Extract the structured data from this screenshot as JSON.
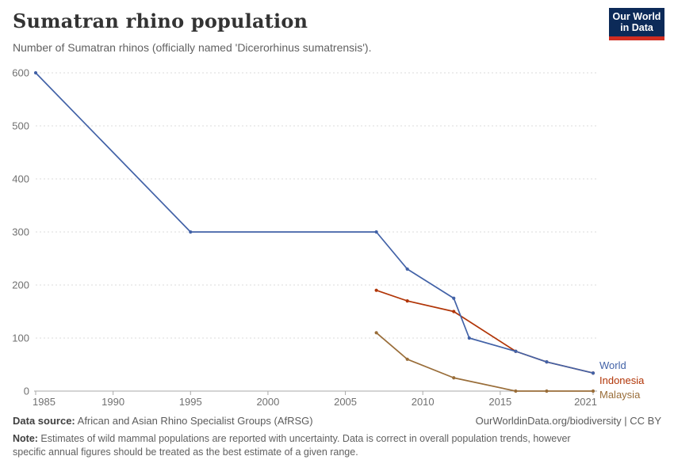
{
  "header": {
    "title": "Sumatran rhino population",
    "subtitle": "Number of Sumatran rhinos (officially named 'Dicerorhinus sumatrensis').",
    "logo": {
      "line1": "Our World",
      "line2": "in Data",
      "bg_color": "#0C2A58",
      "accent_color": "#D12D21"
    }
  },
  "chart_data": {
    "type": "line",
    "title": "Sumatran rhino population",
    "subtitle": "Number of Sumatran rhinos (officially named 'Dicerorhinus sumatrensis').",
    "xlabel": "",
    "ylabel": "",
    "xlim": [
      1985,
      2021
    ],
    "ylim": [
      0,
      600
    ],
    "x_ticks": [
      1985,
      1990,
      1995,
      2000,
      2005,
      2010,
      2015,
      2021
    ],
    "y_ticks": [
      0,
      100,
      200,
      300,
      400,
      500,
      600
    ],
    "grid": "horizontal-dashed",
    "legend_position": "right-of-line-ends",
    "series": [
      {
        "name": "Malaysia",
        "color": "#996D39",
        "points": [
          [
            2007,
            110
          ],
          [
            2009,
            60
          ],
          [
            2012,
            25
          ],
          [
            2016,
            0
          ],
          [
            2018,
            0
          ],
          [
            2021,
            0
          ]
        ]
      },
      {
        "name": "Indonesia",
        "color": "#B13507",
        "points": [
          [
            2007,
            190
          ],
          [
            2009,
            170
          ],
          [
            2012,
            150
          ],
          [
            2016,
            75
          ],
          [
            2018,
            55
          ],
          [
            2021,
            34
          ]
        ]
      },
      {
        "name": "World",
        "color": "#4262A7",
        "points": [
          [
            1985,
            600
          ],
          [
            1995,
            300
          ],
          [
            2007,
            300
          ],
          [
            2009,
            230
          ],
          [
            2012,
            175
          ],
          [
            2013,
            100
          ],
          [
            2016,
            75
          ],
          [
            2018,
            55
          ],
          [
            2021,
            34
          ]
        ]
      }
    ]
  },
  "footer": {
    "source_label": "Data source:",
    "source_text": " African and Asian Rhino Specialist Groups (AfRSG)",
    "rights": "OurWorldinData.org/biodiversity | CC BY",
    "note_label": "Note:",
    "note_text": " Estimates of wild mammal populations are reported with uncertainty. Data is correct in overall population trends, however specific annual figures should be treated as the best estimate of a given range."
  }
}
